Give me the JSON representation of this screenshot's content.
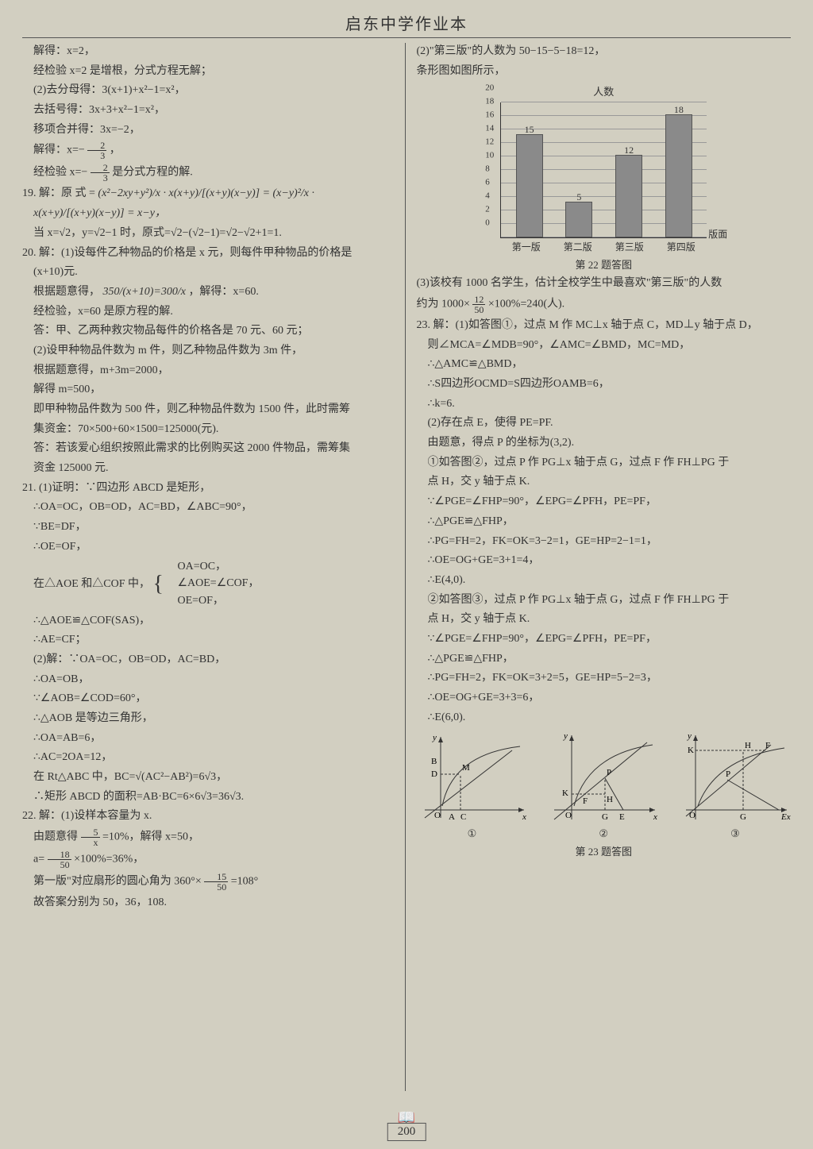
{
  "header": {
    "title": "启东中学作业本"
  },
  "page_number": "200",
  "left": {
    "l01": "解得：x=2，",
    "l02": "经检验 x=2 是增根，分式方程无解；",
    "l03": "(2)去分母得：3(x+1)+x²−1=x²，",
    "l04": "去括号得：3x+3+x²−1=x²，",
    "l05": "移项合并得：3x=−2，",
    "l06a": "解得：x=−",
    "l06n": "2",
    "l06d": "3",
    "l06b": "，",
    "l07a": "经检验 x=−",
    "l07n": "2",
    "l07d": "3",
    "l07b": " 是分式方程的解.",
    "l08a": "19. 解：原 式 = ",
    "l08e": "(x²−2xy+y²)/x · x(x+y)/[(x+y)(x−y)] = (x−y)²/x ·",
    "l09": "x(x+y)/[(x+y)(x−y)] = x−y，",
    "l10": "当 x=√2，y=√2−1 时，原式=√2−(√2−1)=√2−√2+1=1.",
    "l11": "20. 解：(1)设每件乙种物品的价格是 x 元，则每件甲种物品的价格是",
    "l12": "(x+10)元.",
    "l13a": "根据题意得，",
    "l13e": "350/(x+10)=300/x",
    "l13b": "，解得：x=60.",
    "l14": "经检验，x=60 是原方程的解.",
    "l15": "答：甲、乙两种救灾物品每件的价格各是 70 元、60 元；",
    "l16": "(2)设甲种物品件数为 m 件，则乙种物品件数为 3m 件，",
    "l17": "根据题意得，m+3m=2000，",
    "l18": "解得 m=500，",
    "l19": "即甲种物品件数为 500 件，则乙种物品件数为 1500 件，此时需筹",
    "l20": "集资金：70×500+60×1500=125000(元).",
    "l21": "答：若该爱心组织按照此需求的比例购买这 2000 件物品，需筹集",
    "l22": "资金 125000 元.",
    "l23": "21. (1)证明：∵四边形 ABCD 是矩形，",
    "l24": "∴OA=OC，OB=OD，AC=BD，∠ABC=90°，",
    "l25": "∵BE=DF，",
    "l26": "∴OE=OF，",
    "l27": "在△AOE 和△COF 中，",
    "l27a": "OA=OC，",
    "l27b": "∠AOE=∠COF，",
    "l27c": "OE=OF，",
    "l28": "∴△AOE≌△COF(SAS)，",
    "l29": "∴AE=CF；",
    "l30": "(2)解：∵OA=OC，OB=OD，AC=BD，",
    "l31": "∴OA=OB，",
    "l32": "∵∠AOB=∠COD=60°，",
    "l33": "∴△AOB 是等边三角形，",
    "l34": "∴OA=AB=6，",
    "l35": "∴AC=2OA=12，",
    "l36": "在 Rt△ABC 中，BC=√(AC²−AB²)=6√3，",
    "l37": "∴矩形 ABCD 的面积=AB·BC=6×6√3=36√3.",
    "l38": "22. 解：(1)设样本容量为 x.",
    "l39a": "由题意得 ",
    "l39n": "5",
    "l39d": "x",
    "l39b": "=10%，解得 x=50，",
    "l40a": "a=",
    "l40n": "18",
    "l40d": "50",
    "l40b": "×100%=36%，",
    "l41a": "第一版\"对应扇形的圆心角为 360°×",
    "l41n": "15",
    "l41d": "50",
    "l41b": "=108°",
    "l42": "故答案分别为 50，36，108."
  },
  "right": {
    "r01": "(2)\"第三版\"的人数为 50−15−5−18=12，",
    "r02": "条形图如图所示，",
    "chart": {
      "type": "bar",
      "y_title": "人数",
      "x_title": "版面",
      "categories": [
        "第一版",
        "第二版",
        "第三版",
        "第四版"
      ],
      "values": [
        15,
        5,
        12,
        18
      ],
      "ylim": [
        0,
        20
      ],
      "ytick_step": 2,
      "bar_color": "#8a8a8a",
      "grid_color": "#999999",
      "axis_color": "#333333",
      "caption": "第 22 题答图"
    },
    "r03": "(3)该校有 1000 名学生，估计全校学生中最喜欢\"第三版\"的人数",
    "r04a": "约为 1000×",
    "r04n": "12",
    "r04d": "50",
    "r04b": "×100%=240(人).",
    "r05": "23. 解：(1)如答图①，过点 M 作 MC⊥x 轴于点 C，MD⊥y 轴于点 D，",
    "r06": "则∠MCA=∠MDB=90°，∠AMC=∠BMD，MC=MD，",
    "r07": "∴△AMC≌△BMD，",
    "r08": "∴S四边形OCMD=S四边形OAMB=6，",
    "r09": "∴k=6.",
    "r10": "(2)存在点 E，使得 PE=PF.",
    "r11": "由题意，得点 P 的坐标为(3,2).",
    "r12": "①如答图②，过点 P 作 PG⊥x 轴于点 G，过点 F 作 FH⊥PG 于",
    "r13": "点 H，交 y 轴于点 K.",
    "r14": "∵∠PGE=∠FHP=90°，∠EPG=∠PFH，PE=PF，",
    "r15": "∴△PGE≌△FHP，",
    "r16": "∴PG=FH=2，FK=OK=3−2=1，GE=HP=2−1=1，",
    "r17": "∴OE=OG+GE=3+1=4，",
    "r18": "∴E(4,0).",
    "r19": "②如答图③，过点 P 作 PG⊥x 轴于点 G，过点 F 作 FH⊥PG 于",
    "r20": "点 H，交 y 轴于点 K.",
    "r21": "∵∠PGE=∠FHP=90°，∠EPG=∠PFH，PE=PF，",
    "r22": "∴△PGE≌△FHP，",
    "r23": "∴PG=FH=2，FK=OK=3+2=5，GE=HP=5−2=3，",
    "r24": "∴OE=OG+GE=3+3=6，",
    "r25": "∴E(6,0).",
    "diagrams": {
      "labels": [
        "①",
        "②",
        "③"
      ],
      "caption": "第 23 题答图"
    }
  }
}
